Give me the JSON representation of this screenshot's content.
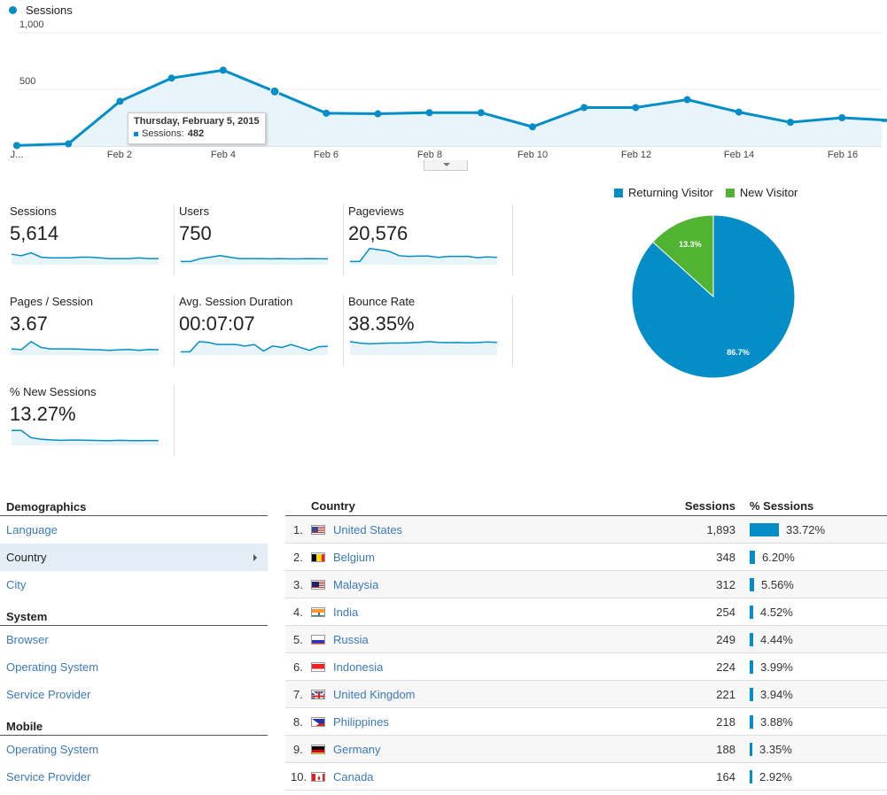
{
  "main_chart": {
    "legend_label": "Sessions",
    "color": "#058dc7",
    "fill": "#e7f4f9",
    "y_labels": [
      "1,000",
      "500"
    ],
    "x_labels": [
      "J...",
      "Feb 2",
      "Feb 4",
      "Feb 6",
      "Feb 8",
      "Feb 10",
      "Feb 12",
      "Feb 14",
      "Feb 16"
    ],
    "tooltip": {
      "date": "Thursday, February 5, 2015",
      "series": "Sessions:",
      "value": "482"
    }
  },
  "chart_data": {
    "type": "area",
    "title": "",
    "ylim": [
      0,
      1000
    ],
    "y_ticks": [
      500,
      1000
    ],
    "x": [
      "Jan 31",
      "Feb 1",
      "Feb 2",
      "Feb 3",
      "Feb 4",
      "Feb 5",
      "Feb 6",
      "Feb 7",
      "Feb 8",
      "Feb 9",
      "Feb 10",
      "Feb 11",
      "Feb 12",
      "Feb 13",
      "Feb 14",
      "Feb 15",
      "Feb 16",
      "Feb 17"
    ],
    "series": [
      {
        "name": "Sessions",
        "values": [
          5,
          20,
          395,
          600,
          670,
          482,
          290,
          285,
          295,
          295,
          170,
          340,
          340,
          410,
          300,
          210,
          250,
          225
        ]
      }
    ],
    "grid": true
  },
  "scorecards": [
    {
      "label": "Sessions",
      "value": "5,614",
      "spark": [
        6,
        5,
        7,
        4,
        3.5,
        3.5,
        3.5,
        4,
        4,
        3.5,
        3,
        3,
        3,
        3.5,
        3,
        3
      ]
    },
    {
      "label": "Users",
      "value": "750",
      "spark": [
        1,
        1,
        3,
        4,
        5,
        4,
        3,
        3,
        3,
        2.8,
        3,
        2.8,
        2.8,
        3,
        2.9,
        2.8
      ]
    },
    {
      "label": "Pageviews",
      "value": "20,576",
      "spark": [
        1,
        1,
        10,
        9,
        8,
        5,
        4.5,
        4.7,
        4.7,
        3.8,
        4.5,
        4.5,
        4.6,
        3.6,
        4.2,
        3.8
      ]
    },
    {
      "label": "Pages / Session",
      "value": "3.67",
      "spark": [
        3,
        2.5,
        8,
        4,
        3,
        3,
        3,
        2.8,
        2.5,
        2.4,
        2,
        2.4,
        2.6,
        2,
        2.6,
        2.4
      ]
    },
    {
      "label": "Avg. Session Duration",
      "value": "00:07:07",
      "spark": [
        1,
        1,
        8,
        7.5,
        6,
        6,
        6,
        5,
        6,
        1.5,
        5,
        4,
        6,
        4,
        2,
        4.5,
        4.8
      ]
    },
    {
      "label": "Bounce Rate",
      "value": "38.35%",
      "spark": [
        8,
        7,
        6.5,
        6.8,
        7,
        7,
        7.2,
        7.5,
        8,
        7.5,
        7.3,
        7.4,
        7.2,
        7.4,
        7.8,
        7.5
      ]
    },
    {
      "label": "% New Sessions",
      "value": "13.27%",
      "spark": [
        9,
        9,
        4,
        3,
        2.5,
        2.2,
        2.4,
        2.4,
        2.2,
        2.1,
        2,
        2.2,
        2.1,
        2,
        2.1,
        2.1
      ]
    }
  ],
  "pie": {
    "legend": [
      {
        "label": "Returning Visitor",
        "color": "#058dc7"
      },
      {
        "label": "New Visitor",
        "color": "#50b432"
      }
    ],
    "slices": [
      {
        "label": "Returning Visitor",
        "value": 86.7,
        "display": "86.7%",
        "color": "#058dc7"
      },
      {
        "label": "New Visitor",
        "value": 13.3,
        "display": "13.3%",
        "color": "#50b432"
      }
    ]
  },
  "left_nav": {
    "sections": [
      {
        "title": "Demographics",
        "items": [
          {
            "label": "Language",
            "selected": false
          },
          {
            "label": "Country",
            "selected": true
          },
          {
            "label": "City",
            "selected": false
          }
        ]
      },
      {
        "title": "System",
        "items": [
          {
            "label": "Browser",
            "selected": false
          },
          {
            "label": "Operating System",
            "selected": false
          },
          {
            "label": "Service Provider",
            "selected": false
          }
        ]
      },
      {
        "title": "Mobile",
        "items": [
          {
            "label": "Operating System",
            "selected": false
          },
          {
            "label": "Service Provider",
            "selected": false
          }
        ]
      }
    ]
  },
  "table": {
    "headers": {
      "country": "Country",
      "sessions": "Sessions",
      "pct": "% Sessions"
    },
    "rows": [
      {
        "rank": "1.",
        "country": "United States",
        "flag": "us",
        "sessions": "1,893",
        "pct_value": 33.72,
        "pct": "33.72%"
      },
      {
        "rank": "2.",
        "country": "Belgium",
        "flag": "be",
        "sessions": "348",
        "pct_value": 6.2,
        "pct": "6.20%"
      },
      {
        "rank": "3.",
        "country": "Malaysia",
        "flag": "my",
        "sessions": "312",
        "pct_value": 5.56,
        "pct": "5.56%"
      },
      {
        "rank": "4.",
        "country": "India",
        "flag": "in",
        "sessions": "254",
        "pct_value": 4.52,
        "pct": "4.52%"
      },
      {
        "rank": "5.",
        "country": "Russia",
        "flag": "ru",
        "sessions": "249",
        "pct_value": 4.44,
        "pct": "4.44%"
      },
      {
        "rank": "6.",
        "country": "Indonesia",
        "flag": "id",
        "sessions": "224",
        "pct_value": 3.99,
        "pct": "3.99%"
      },
      {
        "rank": "7.",
        "country": "United Kingdom",
        "flag": "gb",
        "sessions": "221",
        "pct_value": 3.94,
        "pct": "3.94%"
      },
      {
        "rank": "8.",
        "country": "Philippines",
        "flag": "ph",
        "sessions": "218",
        "pct_value": 3.88,
        "pct": "3.88%"
      },
      {
        "rank": "9.",
        "country": "Germany",
        "flag": "de",
        "sessions": "188",
        "pct_value": 3.35,
        "pct": "3.35%"
      },
      {
        "rank": "10.",
        "country": "Canada",
        "flag": "ca",
        "sessions": "164",
        "pct_value": 2.92,
        "pct": "2.92%"
      }
    ]
  }
}
